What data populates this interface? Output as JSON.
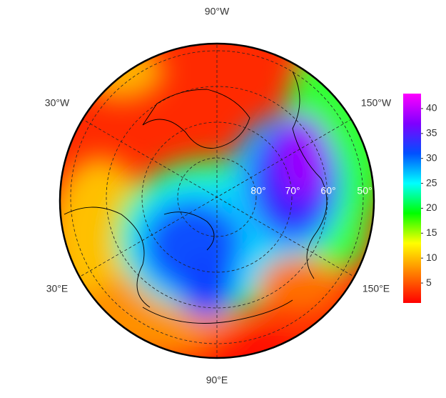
{
  "map": {
    "longitude_labels": [
      "90°W",
      "30°W",
      "150°W",
      "30°E",
      "150°E",
      "90°E"
    ],
    "latitude_labels": [
      "80°",
      "70°",
      "60°",
      "50°"
    ],
    "colorbar": {
      "range": [
        1,
        43
      ],
      "ticks": [
        5,
        10,
        15,
        20,
        25,
        30,
        35,
        40
      ],
      "colors": [
        "#ff0000",
        "#ff7f00",
        "#ffff00",
        "#00ff00",
        "#00ffff",
        "#0050ff",
        "#7f00ff",
        "#ff00ff"
      ]
    }
  }
}
